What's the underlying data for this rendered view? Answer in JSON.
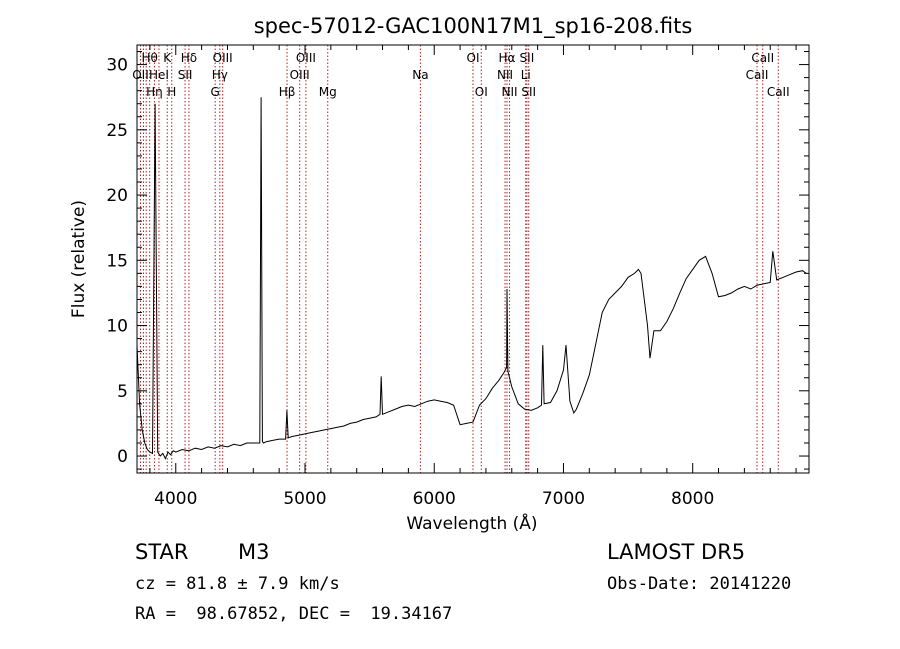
{
  "chart_data": {
    "type": "line",
    "title": "spec-57012-GAC100N17M1_sp16-208.fits",
    "xlabel": "Wavelength (Å)",
    "ylabel": "Flux (relative)",
    "xlim": [
      3700,
      8900
    ],
    "ylim": [
      -1.3,
      31.5
    ],
    "x_ticks": [
      4000,
      5000,
      6000,
      7000,
      8000
    ],
    "y_ticks": [
      0,
      5,
      10,
      15,
      20,
      25,
      30
    ],
    "grid": false,
    "legend": "none",
    "line_color": "#000000",
    "marker_color": "#b22222",
    "series": [
      {
        "x": [
          3700,
          3720,
          3740,
          3760,
          3780,
          3800,
          3820,
          3840,
          3860,
          3880,
          3900,
          3920,
          3940,
          3960,
          3980,
          4000,
          4050,
          4100,
          4150,
          4200,
          4250,
          4300,
          4350,
          4400,
          4450,
          4500,
          4550,
          4600,
          4650,
          4660,
          4670,
          4680,
          4700,
          4750,
          4800,
          4850,
          4860,
          4870,
          4900,
          4950,
          5000,
          5050,
          5100,
          5150,
          5200,
          5250,
          5300,
          5350,
          5400,
          5450,
          5500,
          5550,
          5580,
          5590,
          5600,
          5650,
          5700,
          5750,
          5800,
          5850,
          5900,
          5950,
          6000,
          6050,
          6100,
          6150,
          6200,
          6250,
          6300,
          6350,
          6400,
          6450,
          6500,
          6540,
          6560,
          6563,
          6570,
          6600,
          6650,
          6700,
          6750,
          6800,
          6830,
          6840,
          6850,
          6900,
          6950,
          7000,
          7020,
          7050,
          7080,
          7100,
          7150,
          7200,
          7250,
          7300,
          7350,
          7400,
          7450,
          7500,
          7550,
          7580,
          7600,
          7650,
          7670,
          7700,
          7750,
          7800,
          7850,
          7900,
          7950,
          8000,
          8050,
          8100,
          8150,
          8200,
          8250,
          8300,
          8350,
          8400,
          8450,
          8500,
          8550,
          8600,
          8620,
          8650,
          8700,
          8750,
          8800,
          8850,
          8880
        ],
        "values": [
          8.5,
          4.0,
          2.0,
          1.0,
          0.5,
          0.3,
          0.2,
          27.0,
          0.3,
          0.0,
          0.2,
          -0.2,
          0.3,
          0.1,
          0.4,
          0.3,
          0.5,
          0.4,
          0.6,
          0.5,
          0.7,
          0.6,
          0.8,
          0.7,
          0.9,
          0.8,
          1.0,
          1.0,
          1.0,
          27.5,
          1.1,
          1.0,
          1.1,
          1.2,
          1.3,
          1.3,
          3.5,
          1.4,
          1.5,
          1.6,
          1.7,
          1.8,
          1.9,
          2.0,
          2.1,
          2.2,
          2.3,
          2.5,
          2.6,
          2.8,
          2.9,
          3.0,
          3.2,
          6.1,
          3.2,
          3.4,
          3.6,
          3.8,
          3.9,
          3.8,
          4.0,
          4.2,
          4.3,
          4.2,
          4.1,
          3.9,
          2.4,
          2.5,
          2.6,
          3.9,
          4.4,
          5.2,
          5.8,
          6.4,
          6.8,
          12.8,
          6.5,
          5.3,
          4.0,
          3.6,
          3.5,
          3.7,
          3.9,
          8.5,
          4.0,
          4.1,
          5.0,
          6.6,
          8.5,
          4.2,
          3.3,
          3.6,
          4.8,
          6.2,
          8.6,
          11.0,
          12.0,
          12.5,
          13.0,
          13.7,
          14.0,
          14.3,
          14.0,
          10.0,
          7.5,
          9.6,
          9.6,
          10.3,
          11.3,
          12.5,
          13.6,
          14.3,
          15.0,
          15.3,
          14.0,
          12.2,
          12.3,
          12.5,
          12.8,
          13.0,
          12.8,
          13.1,
          13.2,
          13.3,
          15.7,
          13.5,
          13.7,
          13.9,
          14.1,
          14.2,
          14.0
        ]
      }
    ],
    "lines": [
      {
        "x": 3727,
        "label": "OII",
        "row": 1
      },
      {
        "x": 3750,
        "label": "",
        "row": 0
      },
      {
        "x": 3771,
        "label": "",
        "row": 0
      },
      {
        "x": 3798,
        "label": "Hθ",
        "row": 0
      },
      {
        "x": 3835,
        "label": "Hη",
        "row": 2
      },
      {
        "x": 3870,
        "label": "HeI",
        "row": 1
      },
      {
        "x": 3934,
        "label": "K",
        "row": 0
      },
      {
        "x": 3969,
        "label": "H",
        "row": 2
      },
      {
        "x": 4072,
        "label": "SII",
        "row": 1
      },
      {
        "x": 4102,
        "label": "Hδ",
        "row": 0
      },
      {
        "x": 4305,
        "label": "G",
        "row": 2
      },
      {
        "x": 4341,
        "label": "Hγ",
        "row": 1
      },
      {
        "x": 4363,
        "label": "OIII",
        "row": 0
      },
      {
        "x": 4861,
        "label": "Hβ",
        "row": 2
      },
      {
        "x": 4959,
        "label": "OIII",
        "row": 1
      },
      {
        "x": 5007,
        "label": "OIII",
        "row": 0
      },
      {
        "x": 5176,
        "label": "Mg",
        "row": 2
      },
      {
        "x": 5893,
        "label": "Na",
        "row": 1
      },
      {
        "x": 6300,
        "label": "OI",
        "row": 0
      },
      {
        "x": 6364,
        "label": "OI",
        "row": 2
      },
      {
        "x": 6548,
        "label": "NII",
        "row": 1
      },
      {
        "x": 6563,
        "label": "Hα",
        "row": 0
      },
      {
        "x": 6583,
        "label": "NII",
        "row": 2
      },
      {
        "x": 6708,
        "label": "Li",
        "row": 1
      },
      {
        "x": 6717,
        "label": "SII",
        "row": 0
      },
      {
        "x": 6731,
        "label": "SII",
        "row": 2
      },
      {
        "x": 8498,
        "label": "CaII",
        "row": 1
      },
      {
        "x": 8542,
        "label": "CaII",
        "row": 0
      },
      {
        "x": 8662,
        "label": "CaII",
        "row": 2
      }
    ]
  },
  "info": {
    "class": "STAR",
    "subclass": "M3",
    "survey": "LAMOST DR5",
    "cz": "cz = 81.8 ± 7.9 km/s",
    "obs_date": "Obs-Date: 20141220",
    "coords": "RA =  98.67852, DEC =  19.34167"
  }
}
